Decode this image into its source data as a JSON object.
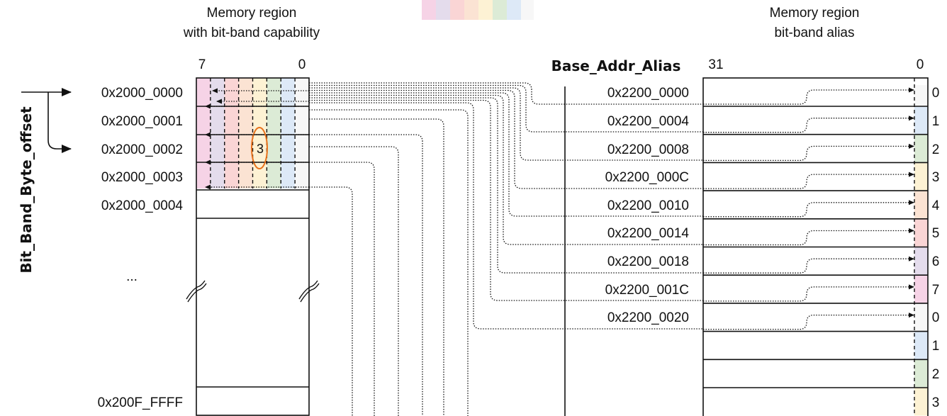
{
  "left_region": {
    "title_line1": "Memory region",
    "title_line2": "with bit-band capability",
    "bit_high": "7",
    "bit_low": "0",
    "addresses": [
      "0x2000_0000",
      "0x2000_0001",
      "0x2000_0002",
      "0x2000_0003",
      "0x2000_0004"
    ],
    "ellipsis": "...",
    "last_address": "0x200F_FFFF",
    "highlighted_bit": "3"
  },
  "offset_label": "Bit_Band_Byte_offset",
  "alias_base_label": "Base_Addr_Alias",
  "right_region": {
    "title_line1": "Memory region",
    "title_line2": "bit-band alias",
    "bit_high": "31",
    "bit_low": "0",
    "addresses": [
      "0x2200_0000",
      "0x2200_0004",
      "0x2200_0008",
      "0x2200_000C",
      "0x2200_0010",
      "0x2200_0014",
      "0x2200_0018",
      "0x2200_001C",
      "0x2200_0020"
    ],
    "bit_numbers": [
      "0",
      "1",
      "2",
      "3",
      "4",
      "5",
      "6",
      "7",
      "0",
      "1",
      "2",
      "3"
    ]
  },
  "colors": {
    "bit7": "#f6d3e6",
    "bit6": "#e4dcec",
    "bit5": "#fad5d5",
    "bit4": "#fbe3d3",
    "bit3": "#fdf2d4",
    "bit2": "#dcebd6",
    "bit1": "#dde9f7",
    "bit0": "#f7f7f7",
    "highlight": "#e8721c"
  }
}
